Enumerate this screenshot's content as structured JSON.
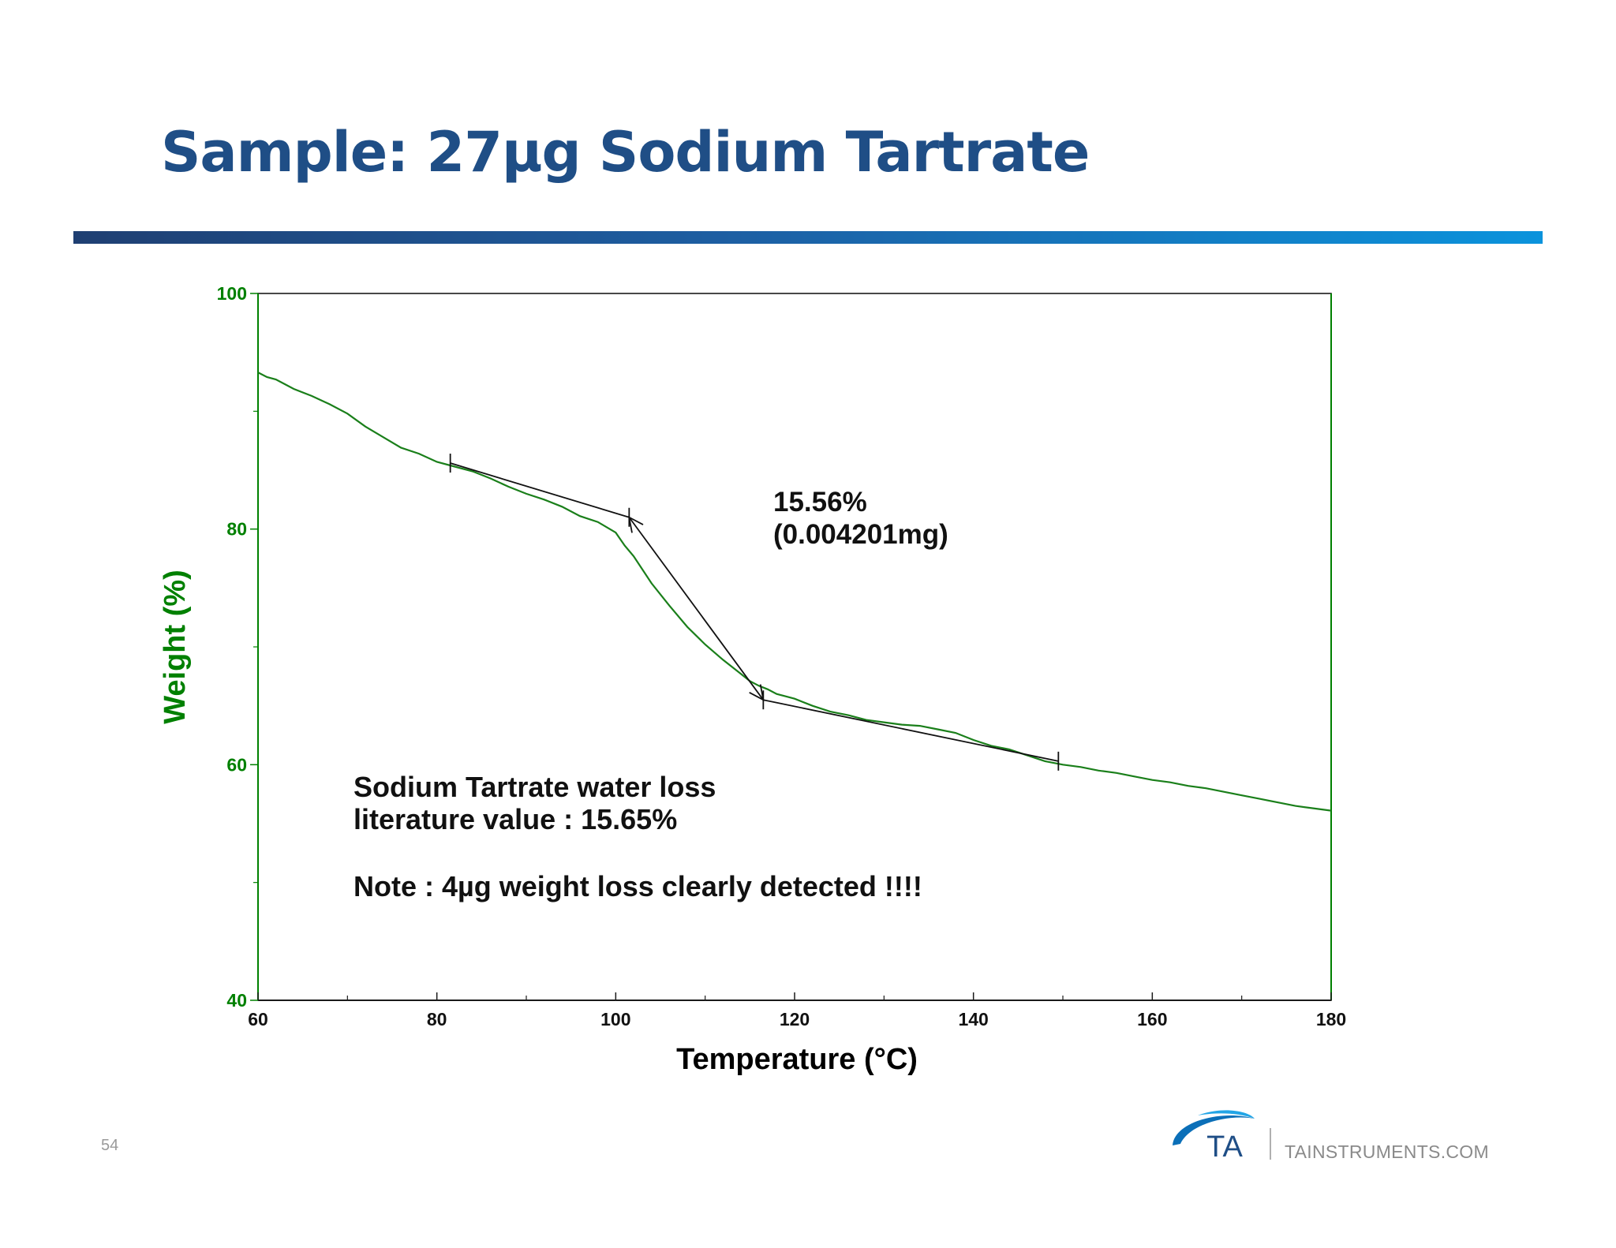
{
  "slide": {
    "title": "Sample: 27µg Sodium Tartrate",
    "page_number": "54",
    "website": "TAINSTRUMENTS.COM",
    "logo_text": "TA",
    "title_color": "#1f4e86"
  },
  "chart_data": {
    "type": "line",
    "title": "",
    "xlabel": "Temperature (°C)",
    "ylabel": "Weight (%)",
    "xlim": [
      60,
      180
    ],
    "ylim": [
      40,
      100
    ],
    "x_ticks": [
      60,
      80,
      100,
      120,
      140,
      160,
      180
    ],
    "y_ticks": [
      40,
      60,
      80,
      100
    ],
    "axis_color": "#008000",
    "series": [
      {
        "name": "Weight",
        "color": "#1a7f1a",
        "x": [
          60,
          61,
          62,
          63,
          64,
          66,
          68,
          70,
          72,
          74,
          76,
          78,
          80,
          82,
          84,
          86,
          88,
          90,
          92,
          94,
          96,
          98,
          100,
          101,
          102,
          104,
          106,
          108,
          110,
          112,
          114,
          115,
          116,
          117,
          118,
          119,
          120,
          122,
          124,
          126,
          128,
          130,
          132,
          134,
          136,
          138,
          140,
          142,
          144,
          146,
          148,
          150,
          152,
          154,
          156,
          158,
          160,
          162,
          164,
          166,
          168,
          170,
          172,
          174,
          176,
          178,
          180
        ],
        "values": [
          93.3,
          92.9,
          92.7,
          92.3,
          91.9,
          91.3,
          90.6,
          89.8,
          88.7,
          87.8,
          86.9,
          86.4,
          85.7,
          85.3,
          84.9,
          84.3,
          83.6,
          83.0,
          82.5,
          81.9,
          81.1,
          80.6,
          79.7,
          78.6,
          77.7,
          75.4,
          73.5,
          71.7,
          70.2,
          68.9,
          67.7,
          67.1,
          66.7,
          66.4,
          66.0,
          65.8,
          65.6,
          65.0,
          64.5,
          64.2,
          63.8,
          63.6,
          63.4,
          63.3,
          63.0,
          62.7,
          62.1,
          61.6,
          61.3,
          60.8,
          60.3,
          60.0,
          59.8,
          59.5,
          59.3,
          59.0,
          58.7,
          58.5,
          58.2,
          58.0,
          57.7,
          57.4,
          57.1,
          56.8,
          56.5,
          56.3,
          56.1
        ]
      }
    ],
    "tangent_lines": [
      {
        "from": [
          81.5,
          85.6
        ],
        "to": [
          101.5,
          81.0
        ]
      },
      {
        "from": [
          116.5,
          65.5
        ],
        "to": [
          149.5,
          60.3
        ]
      }
    ],
    "step_arrow": {
      "from": [
        101.5,
        81.0
      ],
      "to": [
        116.5,
        65.5
      ]
    },
    "step_markers": [
      {
        "x": 81.5,
        "y": 85.6
      },
      {
        "x": 101.5,
        "y": 81.0
      },
      {
        "x": 116.5,
        "y": 65.5
      },
      {
        "x": 149.5,
        "y": 60.3
      }
    ],
    "annotations": {
      "step_percent": "15.56%",
      "step_mass": "(0.004201mg)",
      "note_line1": "Sodium Tartrate water loss",
      "note_line2": "literature value : 15.65%",
      "note_line3": "Note : 4µg weight loss clearly detected !!!!"
    }
  }
}
